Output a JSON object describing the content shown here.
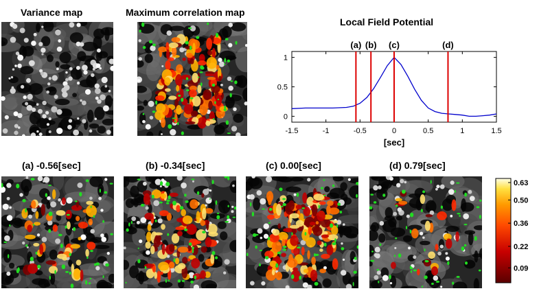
{
  "titles": {
    "variance": "Variance map",
    "maxcorr": "Maximum correlation map",
    "lfp": "Local Field Potential"
  },
  "panels": [
    {
      "label": "(a) -0.56[sec]",
      "intensity": 0.35
    },
    {
      "label": "(b) -0.34[sec]",
      "intensity": 0.7
    },
    {
      "label": "(c) 0.00[sec]",
      "intensity": 1.0
    },
    {
      "label": "(d) 0.79[sec]",
      "intensity": 0.15
    }
  ],
  "colors": {
    "lfp_line": "#0000cc",
    "marker_line": "#dd0000",
    "cell_green": "#22dd22",
    "map_bg": "#262626"
  },
  "chart_data": [
    {
      "type": "line",
      "title": "Local Field Potential",
      "xlabel": "[sec]",
      "ylabel": "",
      "xlim": [
        -1.5,
        1.5
      ],
      "ylim": [
        -0.1,
        1.1
      ],
      "x_ticks": [
        "-1.5",
        "-1",
        "-0.5",
        "0",
        "0.5",
        "1",
        "1.5"
      ],
      "y_ticks": [
        "0",
        "0.5",
        "1"
      ],
      "series": [
        {
          "x": [
            -1.5,
            -1.3,
            -1.1,
            -0.9,
            -0.7,
            -0.6,
            -0.5,
            -0.4,
            -0.3,
            -0.2,
            -0.1,
            0.0,
            0.1,
            0.2,
            0.3,
            0.4,
            0.5,
            0.6,
            0.7,
            0.8,
            0.9,
            1.0,
            1.1,
            1.2,
            1.3,
            1.4,
            1.5
          ],
          "y": [
            0.13,
            0.14,
            0.14,
            0.14,
            0.15,
            0.17,
            0.22,
            0.32,
            0.47,
            0.66,
            0.86,
            1.0,
            0.88,
            0.68,
            0.46,
            0.27,
            0.14,
            0.08,
            0.05,
            0.04,
            0.03,
            0.02,
            0.0,
            0.0,
            0.01,
            0.02,
            0.04
          ]
        }
      ],
      "markers": [
        {
          "label": "(a)",
          "x": -0.56
        },
        {
          "label": "(b)",
          "x": -0.34
        },
        {
          "label": "(c)",
          "x": 0.0
        },
        {
          "label": "(d)",
          "x": 0.79
        }
      ]
    },
    {
      "type": "heatmap",
      "title": "",
      "colorbar_ticks": [
        "0.63",
        "0.50",
        "0.36",
        "0.22",
        "0.09"
      ],
      "range": [
        0.0,
        0.63
      ]
    }
  ]
}
